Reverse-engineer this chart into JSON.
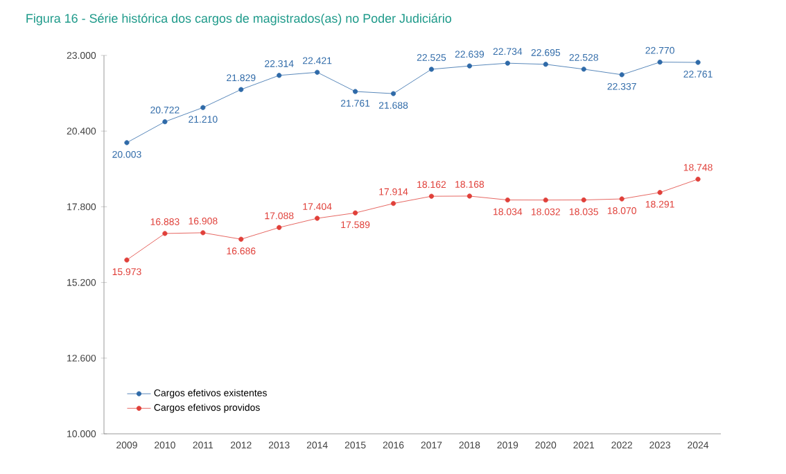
{
  "chart_data": {
    "type": "line",
    "title": "Figura 16 - Série histórica dos cargos de magistrados(as) no Poder Judiciário",
    "categories": [
      "2009",
      "2010",
      "2011",
      "2012",
      "2013",
      "2014",
      "2015",
      "2016",
      "2017",
      "2018",
      "2019",
      "2020",
      "2021",
      "2022",
      "2023",
      "2024"
    ],
    "series": [
      {
        "name": "Cargos efetivos existentes",
        "color": "#2f6aa8",
        "values": [
          20003,
          20722,
          21210,
          21829,
          22314,
          22421,
          21761,
          21688,
          22525,
          22639,
          22734,
          22695,
          22528,
          22337,
          22770,
          22761
        ],
        "value_labels": [
          "20.003",
          "20.722",
          "21.210",
          "21.829",
          "22.314",
          "22.421",
          "21.761",
          "21.688",
          "22.525",
          "22.639",
          "22.734",
          "22.695",
          "22.528",
          "22.337",
          "22.770",
          "22.761"
        ]
      },
      {
        "name": "Cargos efetivos providos",
        "color": "#e0403a",
        "values": [
          15973,
          16883,
          16908,
          16686,
          17088,
          17404,
          17589,
          17914,
          18162,
          18168,
          18034,
          18032,
          18035,
          18070,
          18291,
          18748
        ],
        "value_labels": [
          "15.973",
          "16.883",
          "16.908",
          "16.686",
          "17.088",
          "17.404",
          "17.589",
          "17.914",
          "18.162",
          "18.168",
          "18.034",
          "18.032",
          "18.035",
          "18.070",
          "18.291",
          "18.748"
        ]
      }
    ],
    "ylim": [
      10000,
      23000
    ],
    "yticks": [
      {
        "value": 10000,
        "label": "10.000"
      },
      {
        "value": 12600,
        "label": "12.600"
      },
      {
        "value": 15200,
        "label": "15.200"
      },
      {
        "value": 17800,
        "label": "17.800"
      },
      {
        "value": 20400,
        "label": "20.400"
      },
      {
        "value": 23000,
        "label": "23.000"
      }
    ],
    "legend": "bottom left",
    "marker": "circle",
    "line_style": "solid",
    "grid": false
  }
}
